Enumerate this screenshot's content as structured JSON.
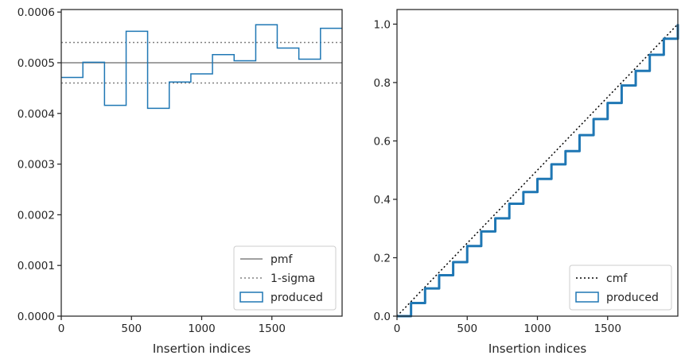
{
  "chart_data": [
    {
      "type": "step",
      "xlabel": "Insertion indices",
      "ylabel": "",
      "xlim": [
        0,
        2000
      ],
      "ylim": [
        0,
        0.000605
      ],
      "xticks": [
        0,
        500,
        1000,
        1500
      ],
      "yticks": [
        0,
        0.0001,
        0.0002,
        0.0003,
        0.0004,
        0.0005,
        0.0006
      ],
      "ytick_labels": [
        "0.0000",
        "0.0001",
        "0.0002",
        "0.0003",
        "0.0004",
        "0.0005",
        "0.0006"
      ],
      "xtick_labels": [
        "0",
        "500",
        "1000",
        "1500"
      ],
      "grid": false,
      "legend": "lower-right",
      "series": [
        {
          "name": "pmf",
          "kind": "hline",
          "style": "solid",
          "color": "#808080",
          "y": 0.0005
        },
        {
          "name": "1-sigma",
          "kind": "hline",
          "style": "dotted",
          "color": "#808080",
          "y": [
            0.00046,
            0.00054
          ]
        },
        {
          "name": "produced",
          "kind": "step",
          "color": "#1f77b4",
          "bin_edges": [
            0,
            154,
            308,
            462,
            615,
            769,
            923,
            1077,
            1231,
            1385,
            1538,
            1692,
            1846,
            2000
          ],
          "values": [
            0.000471,
            0.000501,
            0.000416,
            0.000562,
            0.00041,
            0.000462,
            0.000478,
            0.000516,
            0.000504,
            0.000575,
            0.000529,
            0.000507,
            0.000568
          ]
        }
      ]
    },
    {
      "type": "line",
      "xlabel": "Insertion indices",
      "ylabel": "",
      "xlim": [
        0,
        2000
      ],
      "ylim": [
        0,
        1.05
      ],
      "xticks": [
        0,
        500,
        1000,
        1500
      ],
      "yticks": [
        0,
        0.2,
        0.4,
        0.6,
        0.8,
        1.0
      ],
      "xtick_labels": [
        "0",
        "500",
        "1000",
        "1500"
      ],
      "ytick_labels": [
        "0.0",
        "0.2",
        "0.4",
        "0.6",
        "0.8",
        "1.0"
      ],
      "grid": false,
      "legend": "lower-right",
      "series": [
        {
          "name": "cmf",
          "kind": "line",
          "style": "dotted",
          "color": "#000000",
          "x": [
            0,
            2000
          ],
          "y": [
            0,
            1
          ]
        },
        {
          "name": "produced",
          "kind": "step-cumulative",
          "color": "#1f77b4",
          "x": [
            0,
            100,
            200,
            300,
            400,
            500,
            600,
            700,
            800,
            900,
            1000,
            1100,
            1200,
            1300,
            1400,
            1500,
            1600,
            1700,
            1800,
            1900,
            2000
          ],
          "y": [
            0,
            0.045,
            0.095,
            0.14,
            0.185,
            0.24,
            0.29,
            0.335,
            0.385,
            0.425,
            0.47,
            0.52,
            0.565,
            0.62,
            0.675,
            0.73,
            0.79,
            0.84,
            0.895,
            0.95,
            1.0
          ]
        }
      ]
    }
  ]
}
